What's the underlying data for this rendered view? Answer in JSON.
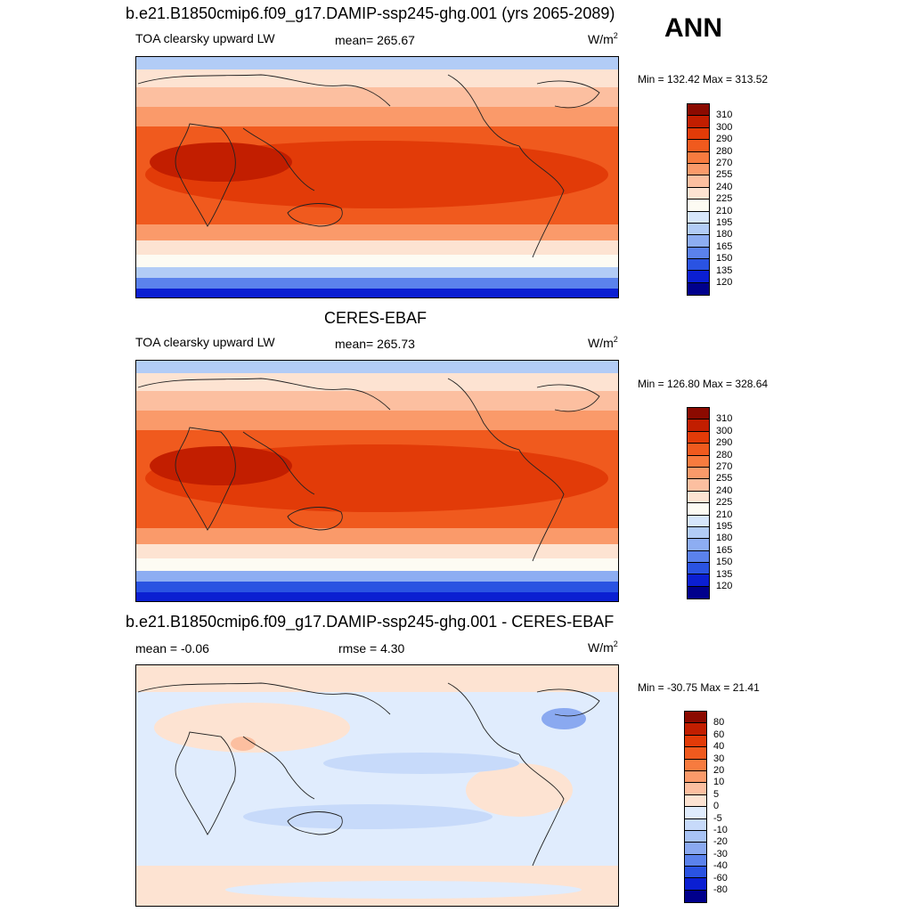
{
  "header": {
    "season": "ANN"
  },
  "panels": [
    {
      "title": "b.e21.B1850cmip6.f09_g17.DAMIP-ssp245-ghg.001 (yrs 2065-2089)",
      "left": "TOA clearsky upward LW",
      "center": "mean= 265.67",
      "units": "W/m",
      "units_sup": "2",
      "minmax": "Min = 132.42 Max = 313.52",
      "kind": "abs"
    },
    {
      "title": "CERES-EBAF",
      "left": "TOA clearsky upward LW",
      "center": "mean= 265.73",
      "units": "W/m",
      "units_sup": "2",
      "minmax": "Min = 126.80 Max = 328.64",
      "kind": "abs"
    },
    {
      "title": "b.e21.B1850cmip6.f09_g17.DAMIP-ssp245-ghg.001 - CERES-EBAF",
      "left": "mean =  -0.06",
      "center": "rmse =   4.30",
      "units": "W/m",
      "units_sup": "2",
      "minmax": "Min = -30.75 Max =  21.41",
      "kind": "diff"
    }
  ],
  "colorbars": {
    "abs": {
      "labels": [
        "310",
        "300",
        "290",
        "280",
        "270",
        "255",
        "240",
        "225",
        "210",
        "195",
        "180",
        "165",
        "150",
        "135",
        "120"
      ],
      "colors": [
        "#8b0a00",
        "#c21e00",
        "#e23b08",
        "#f05a1e",
        "#f77b3f",
        "#fa9a6a",
        "#fcbfa0",
        "#fde3d2",
        "#fdfbf3",
        "#d6e6fb",
        "#b2ccf6",
        "#8dadf2",
        "#5b82ec",
        "#2a53e2",
        "#0b1fd2",
        "#00008c"
      ]
    },
    "diff": {
      "labels": [
        "80",
        "60",
        "40",
        "30",
        "20",
        "10",
        "5",
        "0",
        "-5",
        "-10",
        "-20",
        "-30",
        "-40",
        "-60",
        "-80"
      ],
      "colors": [
        "#8b0a00",
        "#c21e00",
        "#e23b08",
        "#f05a1e",
        "#f77b3f",
        "#fa9a6a",
        "#fcbfa0",
        "#fde3d2",
        "#e0ecfd",
        "#c7dafa",
        "#a8c3f5",
        "#8aa9f0",
        "#5b82ec",
        "#2a53e2",
        "#0b1fd2",
        "#00008c"
      ]
    }
  }
}
